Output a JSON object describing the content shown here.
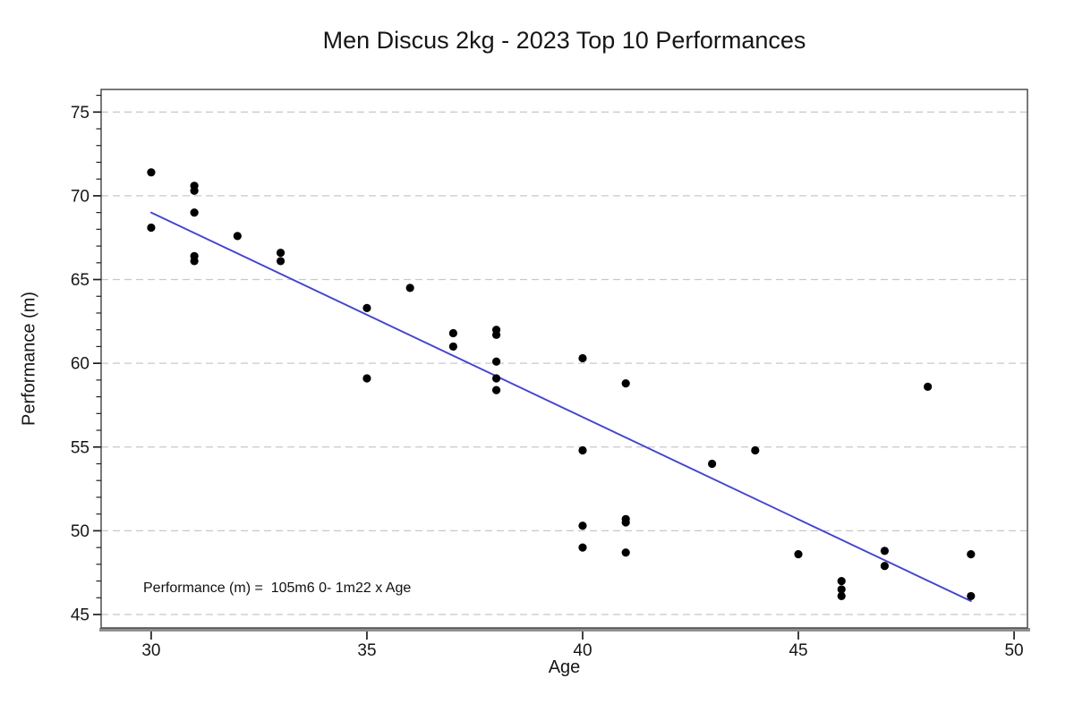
{
  "page": {
    "background": "#ffffff"
  },
  "chart_data": {
    "type": "scatter",
    "title": "Men Discus 2kg - 2023 Top 10 Performances",
    "xlabel": "Age",
    "ylabel": "Performance (m)",
    "annotation": "Performance (m) =  105m6 0- 1m22 x Age",
    "xlim": [
      28.84,
      50.31
    ],
    "ylim": [
      44.2,
      76.35
    ],
    "x_ticks": [
      30,
      35,
      40,
      45,
      50
    ],
    "y_ticks": [
      45,
      50,
      55,
      60,
      65,
      70,
      75
    ],
    "y_minor_tick_step": 1,
    "grid": "horizontal-dashed",
    "legend": "none",
    "points": [
      [
        30,
        71.4
      ],
      [
        30,
        68.1
      ],
      [
        31,
        70.6
      ],
      [
        31,
        70.3
      ],
      [
        31,
        69.0
      ],
      [
        31,
        66.4
      ],
      [
        31,
        66.1
      ],
      [
        32,
        67.6
      ],
      [
        33,
        66.6
      ],
      [
        33,
        66.1
      ],
      [
        35,
        63.3
      ],
      [
        35,
        59.1
      ],
      [
        36,
        64.5
      ],
      [
        37,
        61.8
      ],
      [
        37,
        61.0
      ],
      [
        38,
        62.0
      ],
      [
        38,
        61.7
      ],
      [
        38,
        60.1
      ],
      [
        38,
        59.1
      ],
      [
        38,
        58.4
      ],
      [
        40,
        60.3
      ],
      [
        40,
        54.8
      ],
      [
        40,
        50.3
      ],
      [
        40,
        49.0
      ],
      [
        41,
        58.8
      ],
      [
        41,
        50.7
      ],
      [
        41,
        50.5
      ],
      [
        41,
        48.7
      ],
      [
        43,
        54.0
      ],
      [
        44,
        54.8
      ],
      [
        45,
        48.6
      ],
      [
        46,
        47.0
      ],
      [
        46,
        46.5
      ],
      [
        46,
        46.1
      ],
      [
        47,
        48.8
      ],
      [
        47,
        47.9
      ],
      [
        48,
        58.6
      ],
      [
        49,
        48.6
      ],
      [
        49,
        46.1
      ]
    ],
    "trend_line": {
      "type": "linear-fit",
      "x1": 30,
      "y1": 69.0,
      "x2": 49,
      "y2": 45.8,
      "intercept": 105.6,
      "slope": -1.22
    },
    "colors": {
      "point": "#000000",
      "trend_line": "#4343d1",
      "grid": "#c8c8c8",
      "frame": "#404040",
      "baseline_bar": "#8f8f8f",
      "tick": "#1f1f1f",
      "text": "#161616"
    }
  }
}
